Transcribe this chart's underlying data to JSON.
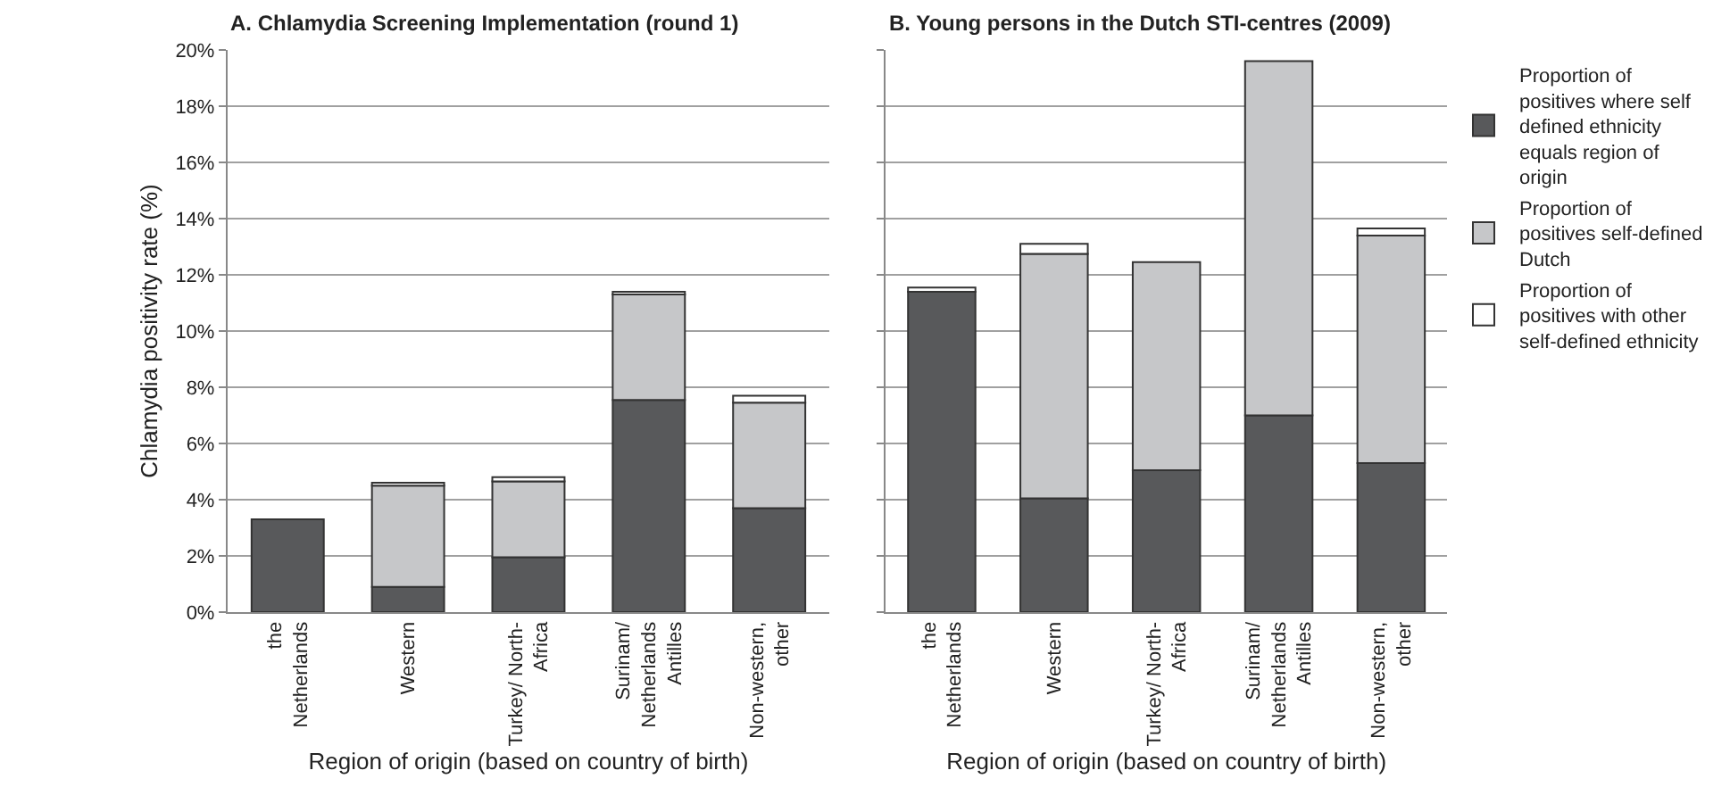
{
  "chart_data": [
    {
      "type": "bar",
      "stacked": true,
      "title": "A. Chlamydia Screening Implementation (round 1)",
      "xlabel": "Region of origin (based on country of birth)",
      "ylabel": "Chlamydia positivity rate (%)",
      "categories": [
        "the\nNetherlands",
        "Western",
        "Turkey/ North-\nAfrica",
        "Surinam/\nNetherlands\nAntilles",
        "Non-western,\nother"
      ],
      "series": [
        {
          "color": "#58595b",
          "values": [
            3.3,
            0.9,
            1.95,
            7.55,
            3.7
          ]
        },
        {
          "color": "#c6c7c9",
          "values": [
            null,
            3.6,
            2.7,
            3.75,
            3.75
          ]
        },
        {
          "color": "#ffffff",
          "values": [
            null,
            0.1,
            0.15,
            0.1,
            0.25
          ]
        }
      ],
      "ylim": [
        0,
        20
      ],
      "yticks": [
        {
          "value": 0,
          "label": "0%"
        },
        {
          "value": 2,
          "label": "2%"
        },
        {
          "value": 4,
          "label": "4%"
        },
        {
          "value": 6,
          "label": "6%"
        },
        {
          "value": 8,
          "label": "8%"
        },
        {
          "value": 10,
          "label": "10%"
        },
        {
          "value": 12,
          "label": "12%"
        },
        {
          "value": 14,
          "label": "14%"
        },
        {
          "value": 16,
          "label": "16%"
        },
        {
          "value": 18,
          "label": "18%"
        },
        {
          "value": 20,
          "label": "20%"
        }
      ],
      "grid": "y",
      "legend": false
    },
    {
      "type": "bar",
      "stacked": true,
      "title": "B. Young persons in the Dutch STI-centres (2009)",
      "xlabel": "Region of origin (based on country of birth)",
      "categories": [
        "the\nNetherlands",
        "Western",
        "Turkey/ North-\nAfrica",
        "Surinam/\nNetherlands\nAntilles",
        "Non-western,\nother"
      ],
      "series": [
        {
          "name": "Proportion of positives where self defined ethnicity equals region of origin",
          "color": "#58595b",
          "values": [
            11.4,
            4.05,
            5.05,
            7.0,
            5.3
          ]
        },
        {
          "name": "Proportion of positives self-defined Dutch",
          "color": "#c6c7c9",
          "values": [
            null,
            8.7,
            7.4,
            12.6,
            8.1
          ]
        },
        {
          "name": "Proportion of positives with other self-defined ethnicity",
          "color": "#ffffff",
          "values": [
            0.15,
            0.35,
            null,
            null,
            0.25
          ]
        }
      ],
      "ylim": [
        0,
        20
      ],
      "yticks": [
        0,
        2,
        4,
        6,
        8,
        10,
        12,
        14,
        16,
        18,
        20
      ],
      "grid": "y",
      "legend": "right",
      "tick_labels": "x"
    }
  ]
}
